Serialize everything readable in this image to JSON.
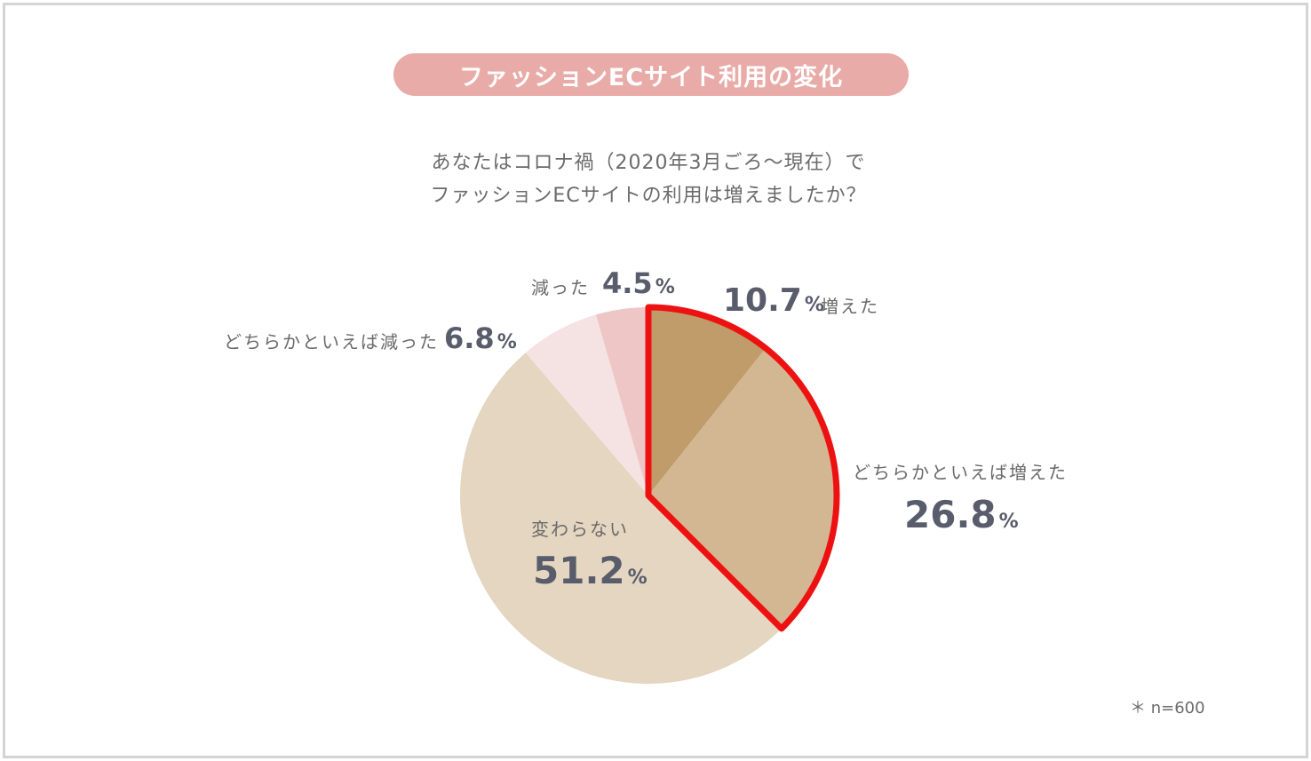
{
  "title": "ファッションECサイト利用の変化",
  "question": {
    "line1": "あなたはコロナ禍（2020年3月ごろ〜現在）で",
    "line2": "ファッションECサイトの利用は増えましたか？"
  },
  "note": "＊ n=600",
  "highlight_color": "#ee1111",
  "chart_data": {
    "type": "pie",
    "title": "ファッションECサイト利用の変化",
    "unit": "%",
    "slices": [
      {
        "label": "増えた",
        "value": 10.7,
        "value_text": "10.7",
        "color": "#bf9c6a"
      },
      {
        "label": "どちらかといえば増えた",
        "value": 26.8,
        "value_text": "26.8",
        "color": "#d2b792"
      },
      {
        "label": "変わらない",
        "value": 51.2,
        "value_text": "51.2",
        "color": "#e4d6c0"
      },
      {
        "label": "どちらかといえば減った",
        "value": 6.8,
        "value_text": "6.8",
        "color": "#f5e3e3"
      },
      {
        "label": "減った",
        "value": 4.5,
        "value_text": "4.5",
        "color": "#efc6c6"
      }
    ],
    "highlighted_slices": [
      "増えた",
      "どちらかといえば増えた"
    ],
    "sample_size": "n=600"
  }
}
